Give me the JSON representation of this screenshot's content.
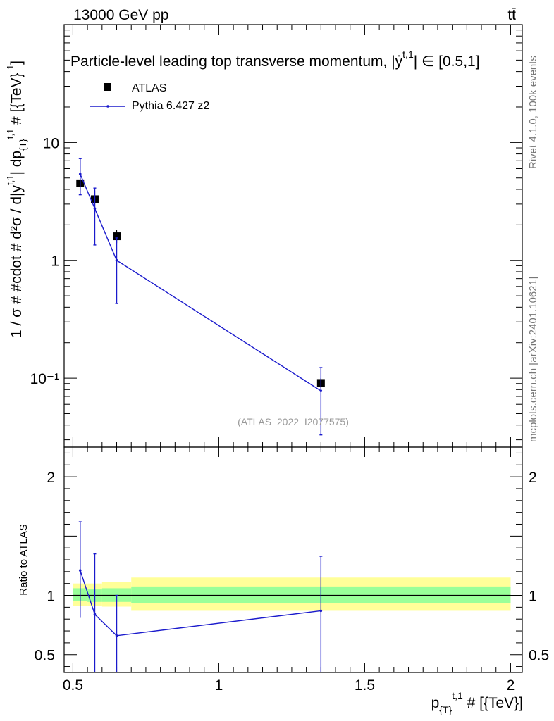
{
  "header": {
    "left": "13000 GeV pp",
    "right": "tt̄"
  },
  "side": {
    "rivet": "Rivet 4.1.0,  100k events",
    "source": "mcplots.cern.ch [arXiv:2401.10621]"
  },
  "chart_data": {
    "type": "scatter",
    "title": "Particle-level leading top transverse momentum, |ẏ",
    "title_sup": "t,1",
    "title_tail": "| ∈ [0.5,1]",
    "watermark": "(ATLAS_2022_I2077575)",
    "xlabel": "p_{T}^{t,1} # [{TeV}]",
    "xlabel_main": "p",
    "xlabel_sub": "{T}",
    "xlabel_sup": "t,1",
    "xlabel_tail": " # [{TeV}]",
    "ylabel": "1 / σ # #cdot # d²σ / d|y^{t,1}| dp_{T}^{t,1} # [{TeV}^{-1}]",
    "ylabel_text": "1 / σ # #cdot # d²σ / d|y",
    "ylabel_text2": "| dp",
    "ylabel_sup1": "t,1",
    "ylabel_sub": "{T}",
    "ylabel_sup2": "t,1",
    "ylabel_tail": " # [{TeV}",
    "ylabel_sup3": "-1",
    "ylabel_end": "]",
    "xlim": [
      0.47,
      2.04
    ],
    "ylim_log": [
      0.026,
      100
    ],
    "yscale": "log",
    "x_ticks": [
      {
        "v": 0.5,
        "label": "0.5"
      },
      {
        "v": 1,
        "label": "1"
      },
      {
        "v": 1.5,
        "label": "1.5"
      },
      {
        "v": 2,
        "label": "2"
      }
    ],
    "y_ticks": [
      {
        "v": 10,
        "label": "10"
      },
      {
        "v": 1,
        "label": "1"
      },
      {
        "v": 0.1,
        "label": "10⁻¹"
      }
    ],
    "legend": {
      "position": "top-left",
      "entries": [
        "ATLAS",
        "Pythia 6.427 z2"
      ]
    },
    "series": [
      {
        "name": "ATLAS",
        "style": "markers",
        "color": "#000000",
        "points": [
          {
            "x": 0.525,
            "y": 4.5,
            "xlo": 0.5,
            "xhi": 0.55,
            "ylo": 3.6,
            "yhi": 5.6
          },
          {
            "x": 0.575,
            "y": 3.3,
            "xlo": 0.55,
            "xhi": 0.6,
            "ylo": 2.7,
            "yhi": 3.9
          },
          {
            "x": 0.65,
            "y": 1.6,
            "xlo": 0.6,
            "xhi": 0.7,
            "ylo": 1.4,
            "yhi": 1.8
          },
          {
            "x": 1.35,
            "y": 0.091,
            "xlo": 0.7,
            "xhi": 2.0,
            "ylo": 0.082,
            "yhi": 0.1
          }
        ]
      },
      {
        "name": "Pythia 6.427 z2",
        "style": "line",
        "color": "#1a1acc",
        "points": [
          {
            "x": 0.525,
            "y": 5.4,
            "ylo": 3.6,
            "yhi": 7.3
          },
          {
            "x": 0.575,
            "y": 2.75,
            "ylo": 1.35,
            "yhi": 4.1
          },
          {
            "x": 0.65,
            "y": 1.0,
            "ylo": 0.43,
            "yhi": 1.55
          },
          {
            "x": 1.35,
            "y": 0.078,
            "ylo": 0.033,
            "yhi": 0.123
          }
        ]
      }
    ],
    "ratio": {
      "ylabel": "Ratio to ATLAS",
      "ylim": [
        0.35,
        2.25
      ],
      "y_ticks": [
        {
          "v": 0.5,
          "label": "0.5"
        },
        {
          "v": 1,
          "label": "1"
        },
        {
          "v": 2,
          "label": "2"
        }
      ],
      "bands": [
        {
          "xlo": 0.5,
          "xhi": 0.55,
          "green_lo": 0.95,
          "green_hi": 1.06,
          "yellow_lo": 0.91,
          "yellow_hi": 1.1
        },
        {
          "xlo": 0.55,
          "xhi": 0.6,
          "green_lo": 0.945,
          "green_hi": 1.05,
          "yellow_lo": 0.91,
          "yellow_hi": 1.1
        },
        {
          "xlo": 0.6,
          "xhi": 0.7,
          "green_lo": 0.945,
          "green_hi": 1.06,
          "yellow_lo": 0.905,
          "yellow_hi": 1.11
        },
        {
          "xlo": 0.7,
          "xhi": 2.0,
          "green_lo": 0.935,
          "green_hi": 1.075,
          "yellow_lo": 0.87,
          "yellow_hi": 1.15
        }
      ],
      "points": [
        {
          "x": 0.525,
          "y": 1.21,
          "ylo": 0.81,
          "yhi": 1.62
        },
        {
          "x": 0.575,
          "y": 0.84,
          "ylo": 0.35,
          "yhi": 1.35
        },
        {
          "x": 0.65,
          "y": 0.66,
          "ylo": 0.35,
          "yhi": 1.0
        },
        {
          "x": 1.35,
          "y": 0.87,
          "ylo": 0.35,
          "yhi": 1.33
        }
      ]
    }
  }
}
